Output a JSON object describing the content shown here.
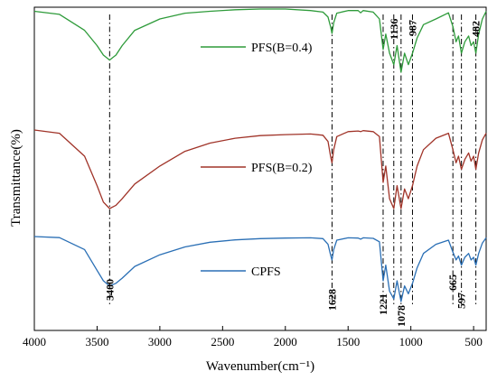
{
  "chart_data": {
    "type": "line",
    "xlabel": "Wavenumber(cm⁻¹)",
    "ylabel": "Transmittance(%)",
    "xlim": [
      4000,
      400
    ],
    "x_reversed": true,
    "x_ticks": [
      4000,
      3500,
      3000,
      2500,
      2000,
      1500,
      1000,
      500
    ],
    "y_tick_labels": false,
    "grid": false,
    "legend_placement": "inline-left-of-curves",
    "x": [
      4000,
      3800,
      3600,
      3500,
      3450,
      3400,
      3350,
      3300,
      3200,
      3000,
      2800,
      2600,
      2400,
      2200,
      2000,
      1800,
      1700,
      1660,
      1640,
      1628,
      1615,
      1590,
      1500,
      1420,
      1400,
      1380,
      1300,
      1250,
      1221,
      1200,
      1170,
      1136,
      1110,
      1078,
      1050,
      1020,
      987,
      950,
      900,
      800,
      700,
      665,
      640,
      620,
      597,
      570,
      540,
      520,
      500,
      482,
      460,
      430,
      400
    ],
    "series": [
      {
        "name": "PFS(B=0.4)",
        "color": "#2e9b3a",
        "values": [
          99,
          98.2,
          94,
          90,
          87.5,
          86.2,
          87.5,
          90,
          94,
          97,
          98.5,
          99,
          99.4,
          99.6,
          99.6,
          99.2,
          98.8,
          97.5,
          95,
          93.2,
          96,
          98.5,
          99.2,
          99.2,
          98.6,
          99.2,
          98.8,
          97,
          89,
          93,
          88,
          85,
          90,
          83,
          88,
          85,
          88,
          92,
          95.5,
          97,
          98.6,
          95,
          91,
          92.5,
          88,
          91,
          92.5,
          90,
          91,
          88,
          93,
          97,
          99
        ]
      },
      {
        "name": "PFS(B=0.2)",
        "color": "#a03328",
        "values": [
          99,
          98,
          91,
          82,
          77,
          75,
          76,
          78,
          82.5,
          88,
          92.5,
          95,
          96.5,
          97.3,
          97.6,
          97.8,
          97.4,
          95.5,
          91,
          89,
          93,
          97,
          98.5,
          98.7,
          98.5,
          98.8,
          98.5,
          97,
          83,
          88,
          78,
          75,
          82,
          75,
          81,
          78,
          82,
          88,
          93,
          96.5,
          98,
          93,
          89,
          91,
          87,
          90,
          92,
          89.5,
          91,
          87,
          92,
          96,
          98
        ]
      },
      {
        "name": "CPFS",
        "color": "#2a6fb5",
        "values": [
          99,
          98.6,
          94,
          86,
          82,
          80,
          81,
          83,
          87.5,
          92,
          95,
          96.8,
          97.7,
          98.2,
          98.4,
          98.5,
          98.2,
          96,
          92,
          90,
          94,
          97.6,
          98.5,
          98.4,
          98,
          98.5,
          98.3,
          97,
          82,
          88,
          78,
          75,
          82,
          74,
          80,
          77,
          81,
          87,
          92.5,
          96,
          97.6,
          93,
          90,
          91.5,
          88,
          91,
          92.5,
          90,
          91,
          88,
          92.5,
          96.5,
          98.5
        ]
      }
    ],
    "peak_markers": [
      3400,
      1628,
      1221,
      1136,
      1078,
      987,
      665,
      597,
      482
    ],
    "peak_labels": [
      {
        "text": "3400",
        "x": 3400
      },
      {
        "text": "1628",
        "x": 1628
      },
      {
        "text": "1221",
        "x": 1221
      },
      {
        "text": "1136",
        "x": 1136
      },
      {
        "text": "1078",
        "x": 1078
      },
      {
        "text": "987",
        "x": 987
      },
      {
        "text": "665",
        "x": 665
      },
      {
        "text": "597",
        "x": 597
      },
      {
        "text": "482",
        "x": 482
      }
    ]
  }
}
